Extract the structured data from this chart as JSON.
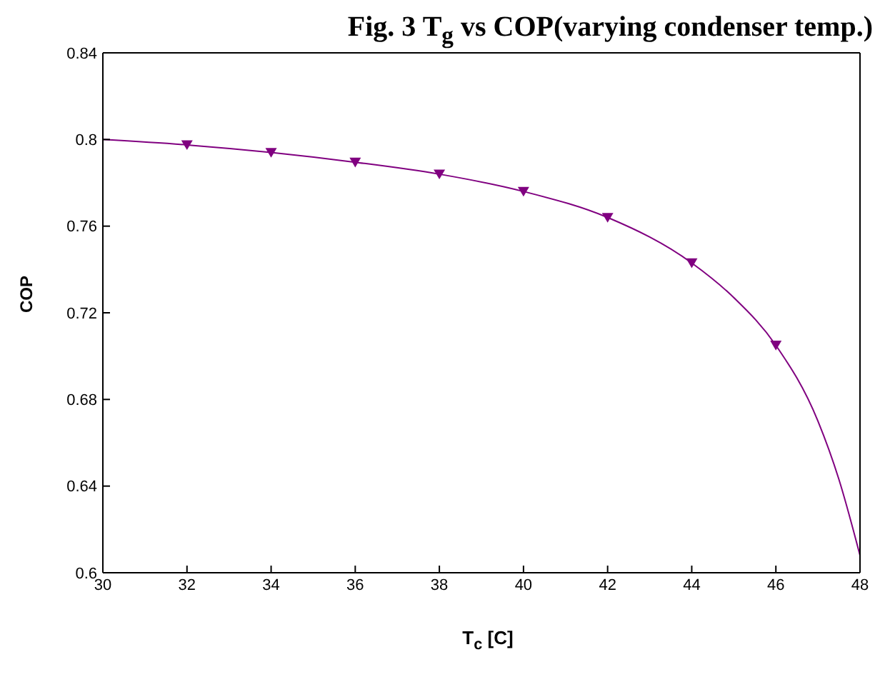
{
  "chart_data": {
    "type": "line",
    "title": "Fig. 3 T$_{g}$ vs COP(varying condenser temp.)",
    "xlabel": "T$_{c}$  [C]",
    "ylabel": "COP",
    "series": [
      {
        "color": "#800080",
        "marker": "none",
        "x": [
          30,
          32,
          34,
          36,
          38,
          40,
          42,
          44,
          45,
          46,
          47,
          47.5,
          48
        ],
        "values": [
          0.8,
          0.7975,
          0.794,
          0.7895,
          0.784,
          0.776,
          0.764,
          0.743,
          0.727,
          0.705,
          0.67,
          0.643,
          0.608
        ]
      },
      {
        "type": "scatter",
        "color": "#800080",
        "marker": "triangle",
        "x": [
          32,
          34,
          36,
          38,
          40,
          42,
          44,
          46
        ],
        "values": [
          0.7975,
          0.794,
          0.7895,
          0.784,
          0.776,
          0.764,
          0.743,
          0.705
        ]
      }
    ],
    "xlim": [
      30,
      48
    ],
    "xticks": [
      30,
      32,
      34,
      36,
      38,
      40,
      42,
      44,
      46,
      48
    ],
    "ylim": [
      0.6,
      0.84
    ],
    "yticks": [
      0.6,
      0.64,
      0.68,
      0.72,
      0.76,
      0.8,
      0.84
    ],
    "grid": false,
    "legend": false
  }
}
